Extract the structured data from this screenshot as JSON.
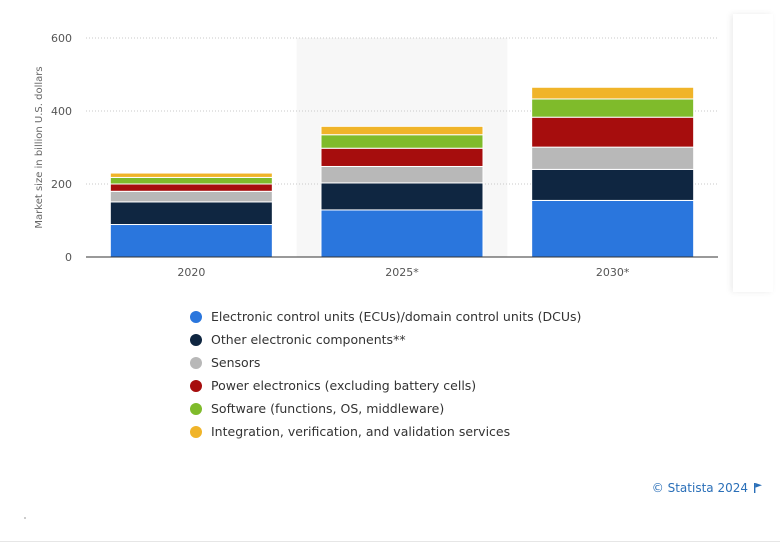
{
  "chart_data": {
    "type": "bar",
    "stacked": true,
    "categories": [
      "2020",
      "2025*",
      "2030*"
    ],
    "ylabel": "Market size in billion U.S. dollars",
    "ylim": [
      0,
      600
    ],
    "yticks": [
      0,
      200,
      400,
      600
    ],
    "grid": true,
    "highlight_category": "2025*",
    "series": [
      {
        "name": "Electronic control units (ECUs)/domain control units (DCUs)",
        "color": "#2a76dd",
        "values": [
          89,
          129,
          155
        ]
      },
      {
        "name": "Other electronic components**",
        "color": "#0f2641",
        "values": [
          62,
          74,
          85
        ]
      },
      {
        "name": "Sensors",
        "color": "#b8b8b8",
        "values": [
          29,
          45,
          61
        ]
      },
      {
        "name": "Power electronics (excluding battery cells)",
        "color": "#a60d0d",
        "values": [
          20,
          50,
          82
        ]
      },
      {
        "name": "Software (functions, OS, middleware)",
        "color": "#7fbb2b",
        "values": [
          18,
          37,
          50
        ]
      },
      {
        "name": "Integration, verification, and validation services",
        "color": "#f0b429",
        "values": [
          12,
          23,
          32
        ]
      }
    ],
    "legend": "bottom"
  },
  "credit": "© Statista 2024"
}
